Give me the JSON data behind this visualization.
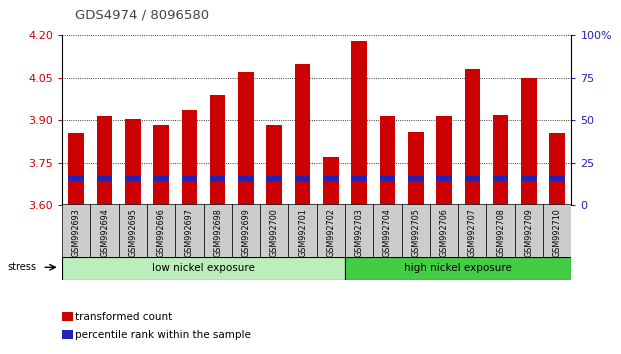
{
  "title": "GDS4974 / 8096580",
  "samples": [
    "GSM992693",
    "GSM992694",
    "GSM992695",
    "GSM992696",
    "GSM992697",
    "GSM992698",
    "GSM992699",
    "GSM992700",
    "GSM992701",
    "GSM992702",
    "GSM992703",
    "GSM992704",
    "GSM992705",
    "GSM992706",
    "GSM992707",
    "GSM992708",
    "GSM992709",
    "GSM992710"
  ],
  "red_values": [
    3.855,
    3.915,
    3.905,
    3.885,
    3.935,
    3.99,
    4.07,
    3.885,
    4.1,
    3.77,
    4.18,
    3.915,
    3.86,
    3.915,
    4.08,
    3.92,
    4.05,
    3.855
  ],
  "blue_heights": [
    0.018,
    0.018,
    0.018,
    0.018,
    0.018,
    0.018,
    0.018,
    0.018,
    0.018,
    0.018,
    0.018,
    0.018,
    0.018,
    0.018,
    0.018,
    0.018,
    0.018,
    0.018
  ],
  "blue_bottoms": [
    3.686,
    3.686,
    3.686,
    3.686,
    3.686,
    3.686,
    3.686,
    3.686,
    3.686,
    3.686,
    3.686,
    3.686,
    3.686,
    3.686,
    3.686,
    3.686,
    3.686,
    3.686
  ],
  "ymin": 3.6,
  "ymax": 4.2,
  "yticks": [
    3.6,
    3.75,
    3.9,
    4.05,
    4.2
  ],
  "right_yticks": [
    0,
    25,
    50,
    75,
    100
  ],
  "group1_label": "low nickel exposure",
  "group2_label": "high nickel exposure",
  "group1_count": 10,
  "stress_label": "stress",
  "legend1": "transformed count",
  "legend2": "percentile rank within the sample",
  "bar_color": "#cc0000",
  "blue_color": "#2222bb",
  "group1_bg": "#bbeebb",
  "group2_bg": "#44cc44",
  "title_color": "#444444",
  "axis_color_left": "#cc0000",
  "axis_color_right": "#2222bb",
  "bar_width": 0.55,
  "blue_bar_width": 0.55,
  "xtick_bg": "#cccccc"
}
